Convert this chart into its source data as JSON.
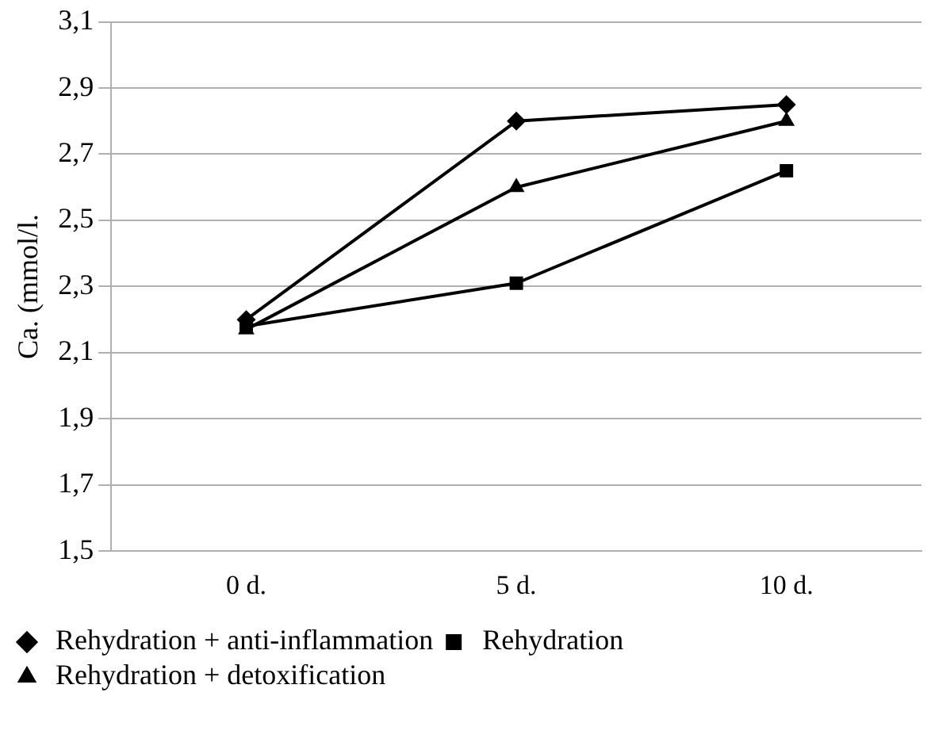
{
  "chart_data": {
    "type": "line",
    "ylabel": "Ca. (mmol/l.",
    "categories": [
      "0 d.",
      "5 d.",
      "10 d."
    ],
    "series": [
      {
        "name": "Rehydration + anti-inflammation",
        "color": "#000000",
        "marker": "diamond",
        "values": [
          2.2,
          2.8,
          2.85
        ]
      },
      {
        "name": "Rehydration",
        "color": "#000000",
        "marker": "square",
        "values": [
          2.18,
          2.31,
          2.65
        ]
      },
      {
        "name": "Rehydration + detoxification",
        "color": "#000000",
        "marker": "triangle",
        "values": [
          2.17,
          2.6,
          2.8
        ]
      }
    ],
    "ylim": [
      1.5,
      3.1
    ],
    "yticks": [
      {
        "value": 1.5,
        "label": "1,5"
      },
      {
        "value": 1.7,
        "label": "1,7"
      },
      {
        "value": 1.9,
        "label": "1,9"
      },
      {
        "value": 2.1,
        "label": "2,1"
      },
      {
        "value": 2.3,
        "label": "2,3"
      },
      {
        "value": 2.5,
        "label": "2,5"
      },
      {
        "value": 2.7,
        "label": "2,7"
      },
      {
        "value": 2.9,
        "label": "2,9"
      },
      {
        "value": 3.1,
        "label": "3,1"
      }
    ],
    "grid": "y",
    "legend": "bottom",
    "line_style": "solid"
  }
}
